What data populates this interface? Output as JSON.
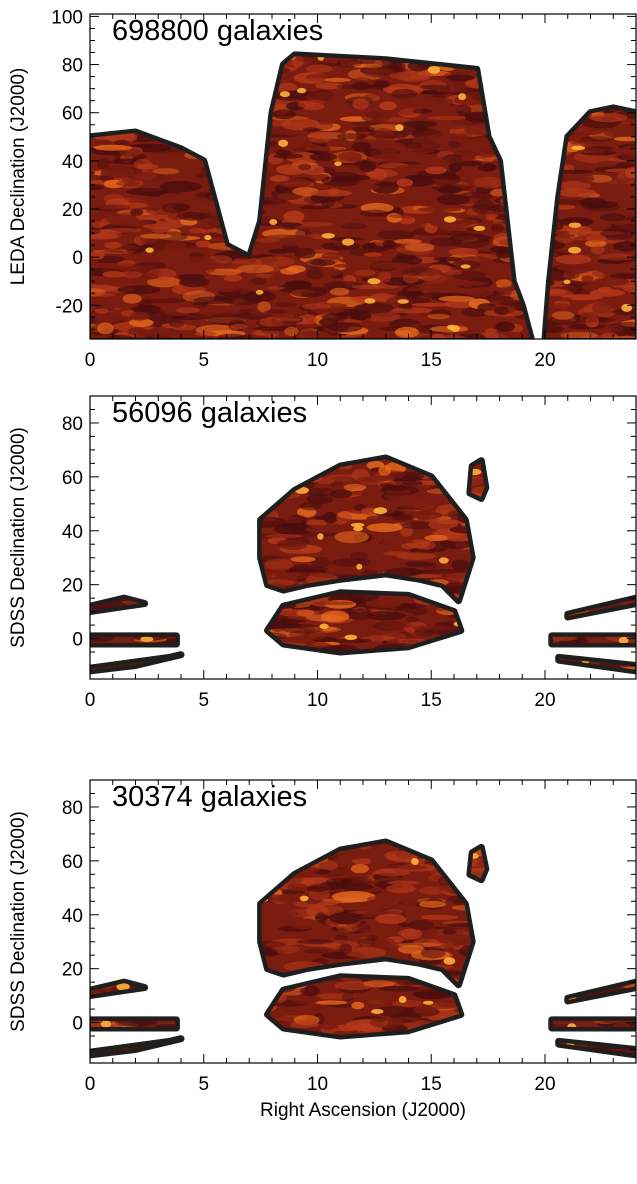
{
  "chart_data": [
    {
      "type": "heatmap",
      "title": "698800 galaxies",
      "xlabel": "",
      "ylabel": "LEDA Declination (J2000)",
      "xlim": [
        0,
        24
      ],
      "ylim": [
        -34,
        101
      ],
      "xticks": [
        0,
        5,
        10,
        15,
        20
      ],
      "yticks": [
        -20,
        0,
        20,
        40,
        60,
        80,
        100
      ],
      "colormap": [
        "#1f1f1f",
        "#4a0d0d",
        "#7a1c10",
        "#b4391a",
        "#e86a1e",
        "#ffb13a"
      ],
      "regions": [
        {
          "name": "main",
          "polygon": [
            [
              0,
              -34
            ],
            [
              0,
              50
            ],
            [
              2,
              52
            ],
            [
              4,
              45
            ],
            [
              5,
              40
            ],
            [
              6,
              5
            ],
            [
              7,
              0
            ],
            [
              7.5,
              15
            ],
            [
              8,
              60
            ],
            [
              8.5,
              80
            ],
            [
              9,
              84
            ],
            [
              13,
              82
            ],
            [
              17,
              78
            ],
            [
              17.5,
              50
            ],
            [
              18,
              40
            ],
            [
              18.6,
              -10
            ],
            [
              19,
              -20
            ],
            [
              19.4,
              -34
            ]
          ]
        },
        {
          "name": "right",
          "polygon": [
            [
              20,
              -34
            ],
            [
              20.2,
              -10
            ],
            [
              20.6,
              25
            ],
            [
              21,
              50
            ],
            [
              22,
              60
            ],
            [
              23,
              62
            ],
            [
              24,
              60
            ],
            [
              24,
              -34
            ]
          ]
        }
      ]
    },
    {
      "type": "heatmap",
      "title": "56096 galaxies",
      "xlabel": "",
      "ylabel": "SDSS Declination (J2000)",
      "xlim": [
        0,
        24
      ],
      "ylim": [
        -15,
        90
      ],
      "xticks": [
        0,
        5,
        10,
        15,
        20
      ],
      "yticks": [
        0,
        20,
        40,
        60,
        80
      ],
      "colormap": [
        "#1f1f1f",
        "#4a0d0d",
        "#7a1c10",
        "#b4391a",
        "#e86a1e",
        "#ffb13a"
      ],
      "regions": [
        {
          "name": "north-cap",
          "polygon": [
            [
              7.5,
              44
            ],
            [
              9,
              55
            ],
            [
              11,
              64
            ],
            [
              13,
              67
            ],
            [
              15,
              60
            ],
            [
              16.5,
              44
            ],
            [
              16.8,
              30
            ],
            [
              16.2,
              14
            ],
            [
              15.5,
              20
            ],
            [
              14.5,
              22
            ],
            [
              13,
              24
            ],
            [
              11,
              22
            ],
            [
              9.5,
              20
            ],
            [
              8.5,
              18
            ],
            [
              7.8,
              20
            ],
            [
              7.5,
              30
            ]
          ]
        },
        {
          "name": "equatorial",
          "polygon": [
            [
              7.8,
              3
            ],
            [
              8.5,
              12
            ],
            [
              11,
              17
            ],
            [
              14,
              16
            ],
            [
              16,
              10
            ],
            [
              16.3,
              3
            ],
            [
              14,
              -3
            ],
            [
              11,
              -5
            ],
            [
              8.5,
              -2
            ]
          ]
        },
        {
          "name": "small-patch",
          "polygon": [
            [
              16.7,
              54
            ],
            [
              16.8,
              64
            ],
            [
              17.2,
              66
            ],
            [
              17.4,
              56
            ],
            [
              17.2,
              52
            ]
          ]
        },
        {
          "name": "left-stripe-1",
          "polygon": [
            [
              0,
              12
            ],
            [
              1.5,
              15
            ],
            [
              2.4,
              13
            ],
            [
              0,
              10
            ]
          ]
        },
        {
          "name": "left-stripe-2",
          "polygon": [
            [
              0,
              -2
            ],
            [
              3.8,
              -2
            ],
            [
              3.8,
              1
            ],
            [
              0,
              1
            ]
          ]
        },
        {
          "name": "left-stripe-3",
          "polygon": [
            [
              0,
              -11
            ],
            [
              3.5,
              -7
            ],
            [
              4,
              -6
            ],
            [
              2,
              -10
            ],
            [
              0,
              -12
            ]
          ]
        },
        {
          "name": "right-stripe-1",
          "polygon": [
            [
              21,
              9
            ],
            [
              24,
              15
            ],
            [
              24,
              13
            ],
            [
              21,
              8
            ]
          ]
        },
        {
          "name": "right-stripe-2",
          "polygon": [
            [
              20.3,
              -2
            ],
            [
              24,
              -2
            ],
            [
              24,
              1
            ],
            [
              20.3,
              1
            ]
          ]
        },
        {
          "name": "right-stripe-3",
          "polygon": [
            [
              20.6,
              -7
            ],
            [
              24,
              -10
            ],
            [
              24,
              -12
            ],
            [
              20.6,
              -8
            ]
          ]
        }
      ]
    },
    {
      "type": "heatmap",
      "title": "30374 galaxies",
      "xlabel": "Right Ascension (J2000)",
      "ylabel": "SDSS Declination (J2000)",
      "xlim": [
        0,
        24
      ],
      "ylim": [
        -15,
        90
      ],
      "xticks": [
        0,
        5,
        10,
        15,
        20
      ],
      "yticks": [
        0,
        20,
        40,
        60,
        80
      ],
      "colormap": [
        "#1f1f1f",
        "#4a0d0d",
        "#7a1c10",
        "#b4391a",
        "#e86a1e",
        "#ffb13a"
      ],
      "regions": [
        {
          "name": "north-cap",
          "polygon": [
            [
              7.5,
              44
            ],
            [
              9,
              55
            ],
            [
              11,
              64
            ],
            [
              13,
              67
            ],
            [
              15,
              60
            ],
            [
              16.5,
              44
            ],
            [
              16.8,
              30
            ],
            [
              16.2,
              14
            ],
            [
              15.5,
              20
            ],
            [
              14.5,
              22
            ],
            [
              13,
              24
            ],
            [
              11,
              22
            ],
            [
              9.5,
              20
            ],
            [
              8.5,
              18
            ],
            [
              7.8,
              20
            ],
            [
              7.5,
              30
            ]
          ]
        },
        {
          "name": "equatorial",
          "polygon": [
            [
              7.8,
              3
            ],
            [
              8.5,
              12
            ],
            [
              11,
              17
            ],
            [
              14,
              16
            ],
            [
              16,
              10
            ],
            [
              16.3,
              3
            ],
            [
              14,
              -3
            ],
            [
              11,
              -5
            ],
            [
              8.5,
              -2
            ]
          ]
        },
        {
          "name": "small-patch",
          "polygon": [
            [
              16.7,
              55
            ],
            [
              16.8,
              63
            ],
            [
              17.2,
              65
            ],
            [
              17.4,
              57
            ],
            [
              17.2,
              53
            ]
          ]
        },
        {
          "name": "left-stripe-1",
          "polygon": [
            [
              0,
              12
            ],
            [
              1.5,
              15
            ],
            [
              2.4,
              13
            ],
            [
              0,
              10
            ]
          ]
        },
        {
          "name": "left-stripe-2",
          "polygon": [
            [
              0,
              -2
            ],
            [
              3.8,
              -2
            ],
            [
              3.8,
              1
            ],
            [
              0,
              1
            ]
          ]
        },
        {
          "name": "left-stripe-3",
          "polygon": [
            [
              0,
              -11
            ],
            [
              3.5,
              -7
            ],
            [
              4,
              -6
            ],
            [
              2,
              -10
            ],
            [
              0,
              -12
            ]
          ]
        },
        {
          "name": "right-stripe-1",
          "polygon": [
            [
              21,
              9
            ],
            [
              24,
              15
            ],
            [
              24,
              13
            ],
            [
              21,
              8
            ]
          ]
        },
        {
          "name": "right-stripe-2",
          "polygon": [
            [
              20.3,
              -2
            ],
            [
              24,
              -2
            ],
            [
              24,
              1
            ],
            [
              20.3,
              1
            ]
          ]
        },
        {
          "name": "right-stripe-3",
          "polygon": [
            [
              20.6,
              -7
            ],
            [
              24,
              -10
            ],
            [
              24,
              -12
            ],
            [
              20.6,
              -8
            ]
          ]
        }
      ]
    }
  ]
}
